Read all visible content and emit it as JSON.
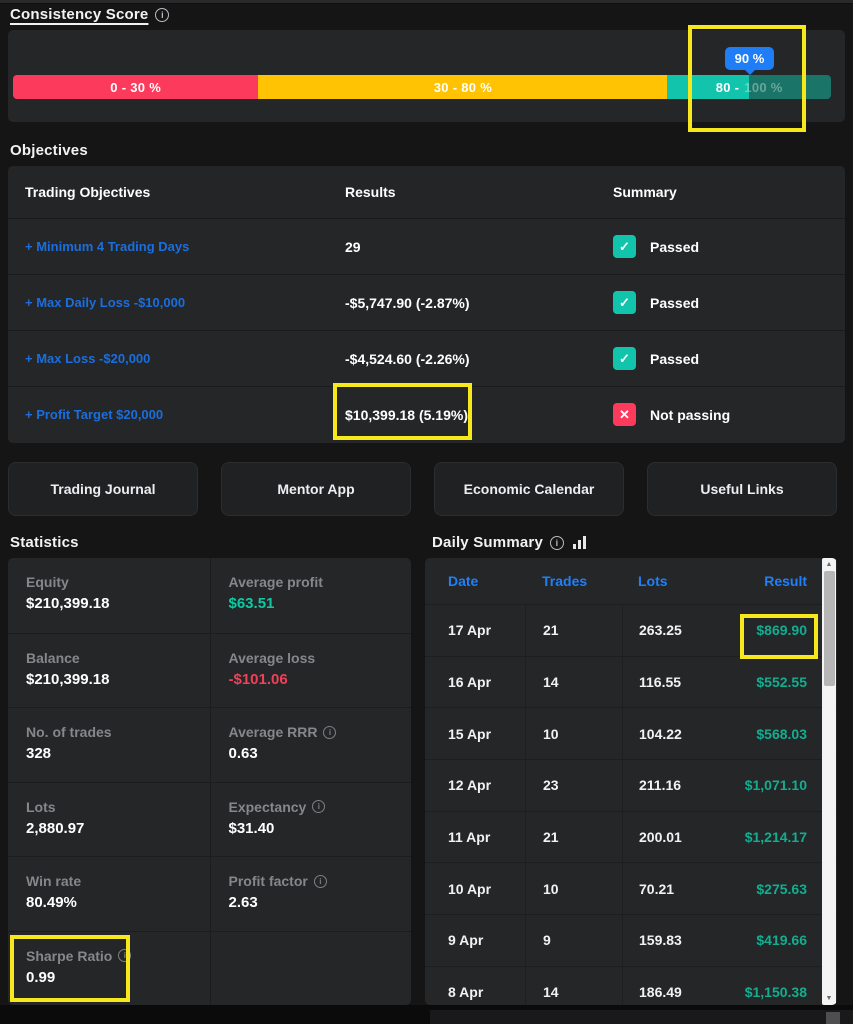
{
  "theme": {
    "panel_bg": "#242628",
    "page_bg": "#151516",
    "accent_blue": "#1b6ede",
    "table_header_blue": "#2080f8",
    "teal": "#13c4ad",
    "teal_dark": "#1a7568",
    "red": "#fb3a5c",
    "yellow": "#ffc303",
    "highlight_yellow": "#f6e81a",
    "profit_green": "#12ae8f",
    "loss_red": "#ef4058",
    "badge_blue": "#1f7df5"
  },
  "consistency": {
    "title": "Consistency Score",
    "badge_label": "90 %",
    "segments": {
      "red_label": "0 - 30 %",
      "yellow_label": "30 - 80 %",
      "teal_label_left": "80 -",
      "teal_label_right": "100 %"
    }
  },
  "objectives": {
    "heading": "Objectives",
    "columns": [
      "Trading Objectives",
      "Results",
      "Summary"
    ],
    "rows": [
      {
        "name": "+ Minimum 4 Trading Days",
        "result": "29",
        "status": "Passed"
      },
      {
        "name": "+ Max Daily Loss -$10,000",
        "result": "-$5,747.90 (-2.87%)",
        "status": "Passed"
      },
      {
        "name": "+ Max Loss -$20,000",
        "result": "-$4,524.60 (-2.26%)",
        "status": "Passed"
      },
      {
        "name": "+ Profit Target $20,000",
        "result": "$10,399.18 (5.19%)",
        "status": "Not passing"
      }
    ]
  },
  "quick_links": [
    "Trading Journal",
    "Mentor App",
    "Economic Calendar",
    "Useful Links"
  ],
  "statistics": {
    "heading": "Statistics",
    "cells": [
      {
        "label": "Equity",
        "value": "$210,399.18"
      },
      {
        "label": "Average profit",
        "value": "$63.51"
      },
      {
        "label": "Balance",
        "value": "$210,399.18"
      },
      {
        "label": "Average loss",
        "value": "-$101.06"
      },
      {
        "label": "No. of trades",
        "value": "328"
      },
      {
        "label": "Average RRR",
        "value": "0.63"
      },
      {
        "label": "Lots",
        "value": "2,880.97"
      },
      {
        "label": "Expectancy",
        "value": "$31.40"
      },
      {
        "label": "Win rate",
        "value": "80.49%"
      },
      {
        "label": "Profit factor",
        "value": "2.63"
      },
      {
        "label": "Sharpe Ratio",
        "value": "0.99"
      }
    ]
  },
  "daily_summary": {
    "heading": "Daily Summary",
    "columns": [
      "Date",
      "Trades",
      "Lots",
      "Result"
    ],
    "rows": [
      {
        "date": "17 Apr",
        "trades": "21",
        "lots": "263.25",
        "result": "$869.90"
      },
      {
        "date": "16 Apr",
        "trades": "14",
        "lots": "116.55",
        "result": "$552.55"
      },
      {
        "date": "15 Apr",
        "trades": "10",
        "lots": "104.22",
        "result": "$568.03"
      },
      {
        "date": "12 Apr",
        "trades": "23",
        "lots": "211.16",
        "result": "$1,071.10"
      },
      {
        "date": "11 Apr",
        "trades": "21",
        "lots": "200.01",
        "result": "$1,214.17"
      },
      {
        "date": "10 Apr",
        "trades": "10",
        "lots": "70.21",
        "result": "$275.63"
      },
      {
        "date": "9 Apr",
        "trades": "9",
        "lots": "159.83",
        "result": "$419.66"
      },
      {
        "date": "8 Apr",
        "trades": "14",
        "lots": "186.49",
        "result": "$1,150.38"
      }
    ]
  }
}
